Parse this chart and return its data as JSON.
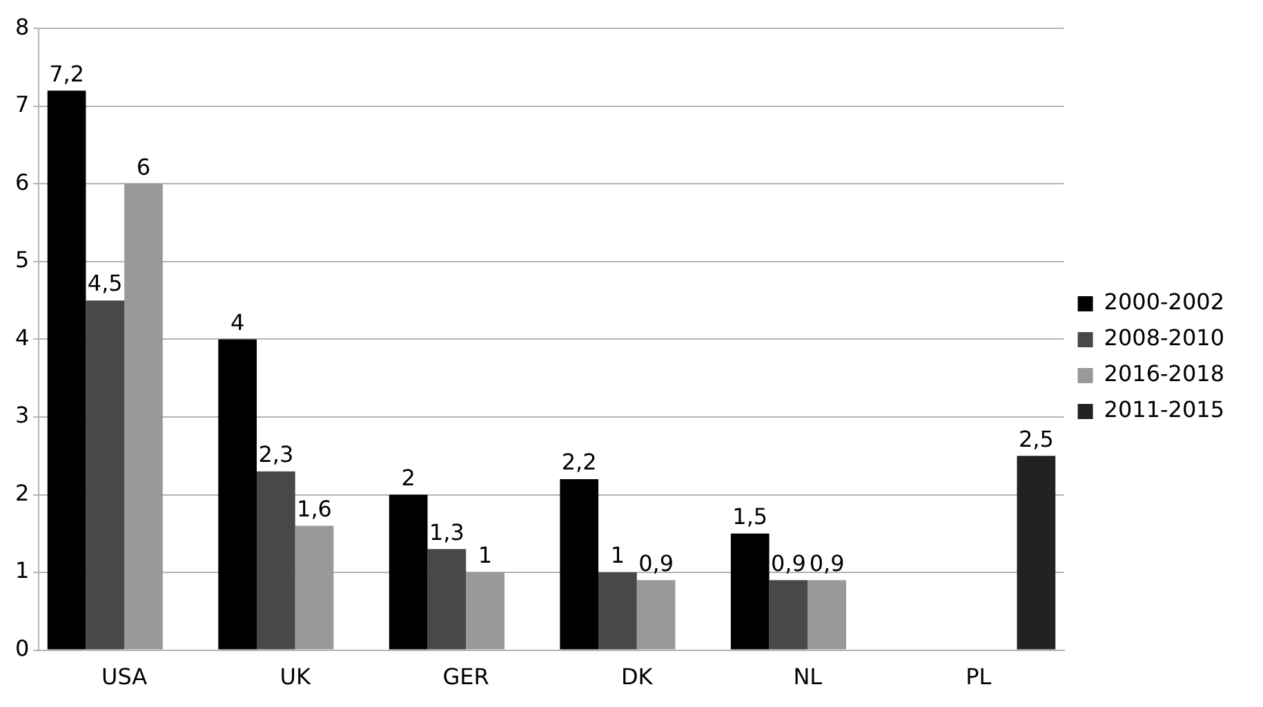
{
  "chart_data": {
    "type": "bar",
    "categories": [
      "USA",
      "UK",
      "GER",
      "DK",
      "NL",
      "PL"
    ],
    "series": [
      {
        "name": "2000-2002",
        "color": "#000000",
        "values": [
          7.2,
          4,
          2,
          2.2,
          1.5,
          null
        ],
        "value_labels": [
          "7,2",
          "4",
          "2",
          "2,2",
          "1,5",
          null
        ]
      },
      {
        "name": "2008-2010",
        "color": "#484848",
        "values": [
          4.5,
          2.3,
          1.3,
          1,
          0.9,
          null
        ],
        "value_labels": [
          "4,5",
          "2,3",
          "1,3",
          "1",
          "0,9",
          null
        ]
      },
      {
        "name": "2016-2018",
        "color": "#999999",
        "values": [
          6,
          1.6,
          1,
          0.9,
          0.9,
          null
        ],
        "value_labels": [
          "6",
          "1,6",
          "1",
          "0,9",
          "0,9",
          null
        ]
      },
      {
        "name": "2011-2015",
        "color": "#222222",
        "values": [
          null,
          null,
          null,
          null,
          null,
          2.5
        ],
        "value_labels": [
          null,
          null,
          null,
          null,
          null,
          "2,5"
        ]
      }
    ],
    "ylim": [
      0,
      8
    ],
    "yticks": [
      0,
      1,
      2,
      3,
      4,
      5,
      6,
      7,
      8
    ],
    "grid": "y",
    "legend": "right"
  }
}
